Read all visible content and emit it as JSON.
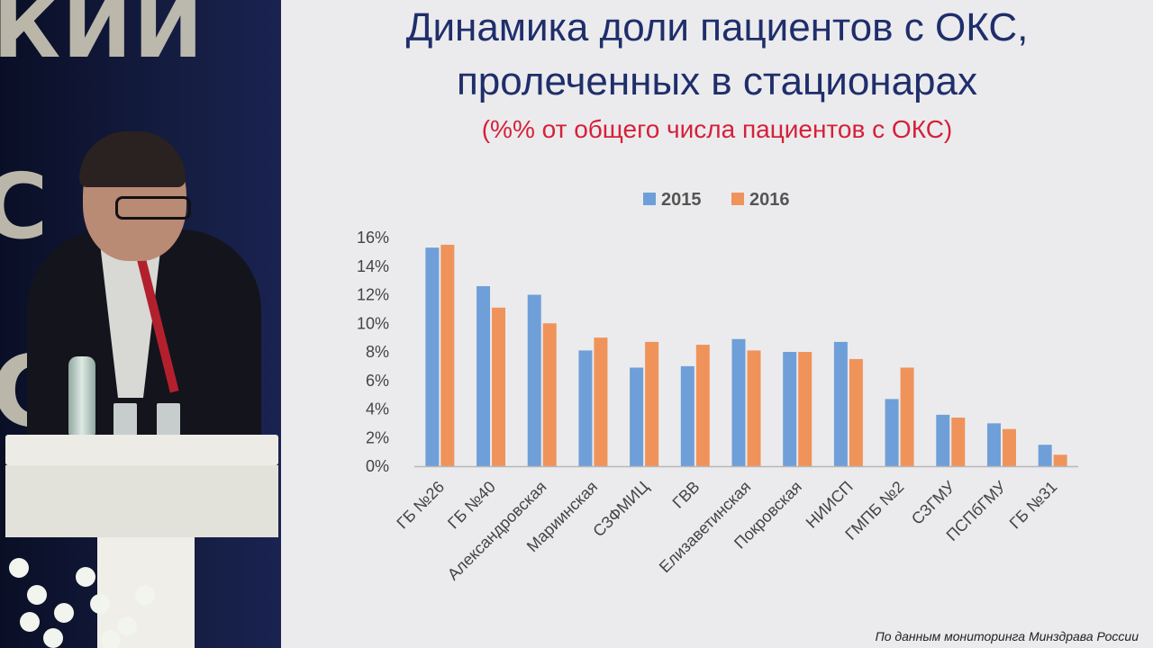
{
  "slide": {
    "title_line1": "Динамика доли пациентов с ОКС,",
    "title_line2": "пролеченных в стационарах",
    "subtitle": "(%% от общего числа пациентов с ОКС)",
    "source": "По данным мониторинга Минздрава России"
  },
  "backdrop": {
    "line1": "КИЙ",
    "line2": "С",
    "line3": "С"
  },
  "colors": {
    "series_2015": "#6f9fd8",
    "series_2016": "#f0935a",
    "title": "#1f2e6b",
    "subtitle": "#d6203a"
  },
  "chart_data": {
    "type": "bar",
    "title": "",
    "xlabel": "",
    "ylabel": "",
    "ylim": [
      0,
      16
    ],
    "yticks": [
      0,
      2,
      4,
      6,
      8,
      10,
      12,
      14,
      16
    ],
    "ytick_suffix": "%",
    "legend_position": "top-center",
    "grid": false,
    "categories": [
      "ГБ №26",
      "ГБ №40",
      "Александровская",
      "Мариинская",
      "СЗФМИЦ",
      "ГВВ",
      "Елизаветинская",
      "Покровская",
      "НИИСП",
      "ГМПБ №2",
      "СЗГМУ",
      "ПСПбГМУ",
      "ГБ №31"
    ],
    "series": [
      {
        "name": "2015",
        "values": [
          15.3,
          12.6,
          12.0,
          8.1,
          6.9,
          7.0,
          8.9,
          8.0,
          8.7,
          4.7,
          3.6,
          3.0,
          1.5
        ]
      },
      {
        "name": "2016",
        "values": [
          15.5,
          11.1,
          10.0,
          9.0,
          8.7,
          8.5,
          8.1,
          8.0,
          7.5,
          6.9,
          3.4,
          2.6,
          0.8
        ]
      }
    ]
  }
}
